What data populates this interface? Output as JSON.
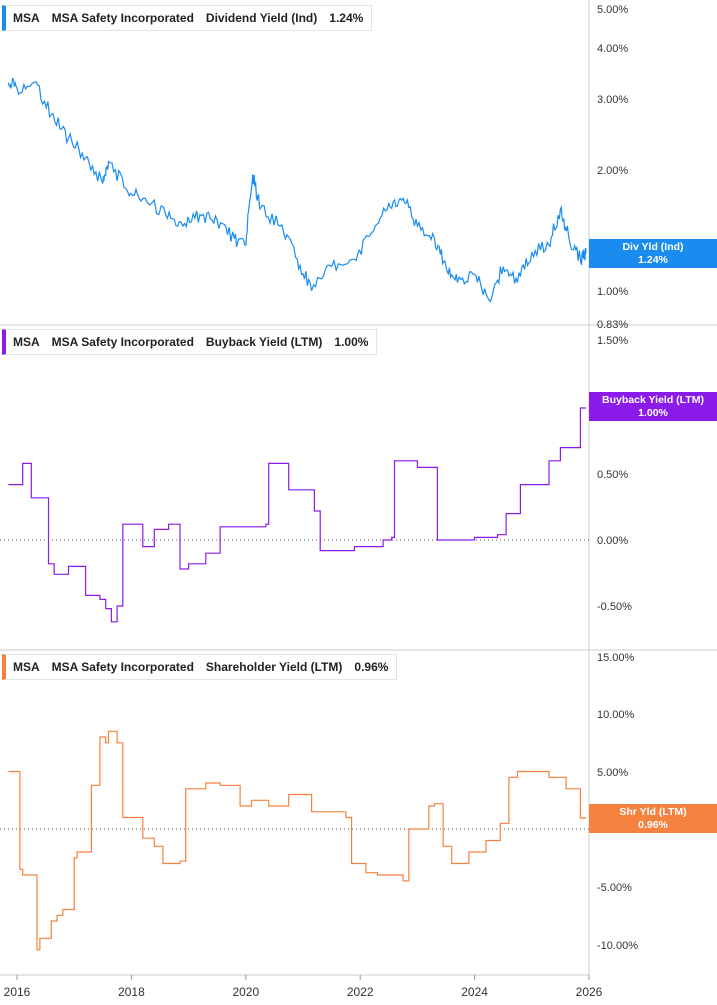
{
  "ticker": "MSA",
  "company": "MSA Safety Incorporated",
  "colors": {
    "dividend": "#1a8cf0",
    "buyback": "#8a1be8",
    "shareholder": "#f5813f"
  },
  "panels": [
    {
      "metric": "Dividend Yield (Ind)",
      "value": "1.24%",
      "badge_name": "Div Yld (Ind)",
      "badge_value": "1.24%"
    },
    {
      "metric": "Buyback Yield (LTM)",
      "value": "1.00%",
      "badge_name": "Buyback Yield (LTM)",
      "badge_value": "1.00%"
    },
    {
      "metric": "Shareholder Yield (LTM)",
      "value": "0.96%",
      "badge_name": "Shr Yld (LTM)",
      "badge_value": "0.96%"
    }
  ],
  "x_axis": {
    "ticks": [
      "2016",
      "2018",
      "2020",
      "2022",
      "2024",
      "2026"
    ]
  },
  "chart_data": [
    {
      "type": "line",
      "series": [
        {
          "name": "Dividend Yield (Ind)",
          "x": [
            2015.85,
            2016.0,
            2016.3,
            2016.6,
            2016.9,
            2017.2,
            2017.5,
            2017.6,
            2017.9,
            2018.2,
            2018.6,
            2018.9,
            2019.2,
            2019.5,
            2019.8,
            2020.0,
            2020.12,
            2020.25,
            2020.6,
            2020.9,
            2021.15,
            2021.5,
            2021.9,
            2022.2,
            2022.5,
            2022.75,
            2023.0,
            2023.3,
            2023.5,
            2023.7,
            2024.0,
            2024.25,
            2024.5,
            2024.75,
            2025.0,
            2025.3,
            2025.5,
            2025.65,
            2025.85,
            2025.95
          ],
          "y": [
            3.3,
            3.2,
            3.3,
            2.75,
            2.4,
            2.15,
            1.85,
            2.1,
            1.8,
            1.7,
            1.55,
            1.45,
            1.55,
            1.5,
            1.35,
            1.3,
            1.95,
            1.6,
            1.45,
            1.2,
            1.0,
            1.15,
            1.2,
            1.4,
            1.65,
            1.7,
            1.45,
            1.35,
            1.15,
            1.05,
            1.1,
            0.95,
            1.15,
            1.05,
            1.25,
            1.3,
            1.6,
            1.35,
            1.2,
            1.24
          ]
        }
      ],
      "y_ticks": [
        "5.00%",
        "4.00%",
        "3.00%",
        "2.00%",
        "1.00%",
        "0.83%"
      ],
      "scale": "log"
    },
    {
      "type": "line",
      "series": [
        {
          "name": "Buyback Yield (LTM)",
          "x": [
            2015.85,
            2016.1,
            2016.25,
            2016.55,
            2016.65,
            2016.9,
            2017.2,
            2017.45,
            2017.55,
            2017.65,
            2017.75,
            2017.85,
            2018.2,
            2018.4,
            2018.65,
            2018.85,
            2019.0,
            2019.3,
            2019.55,
            2019.95,
            2020.35,
            2020.4,
            2020.75,
            2021.2,
            2021.3,
            2021.9,
            2022.4,
            2022.55,
            2022.6,
            2023.0,
            2023.3,
            2023.35,
            2024.0,
            2024.4,
            2024.55,
            2024.8,
            2025.0,
            2025.3,
            2025.5,
            2025.75,
            2025.85,
            2025.95
          ],
          "y": [
            0.42,
            0.58,
            0.32,
            -0.18,
            -0.26,
            -0.2,
            -0.42,
            -0.45,
            -0.52,
            -0.62,
            -0.5,
            0.12,
            -0.05,
            0.08,
            0.12,
            -0.22,
            -0.18,
            -0.1,
            0.1,
            0.1,
            0.12,
            0.58,
            0.38,
            0.22,
            -0.08,
            -0.05,
            0.0,
            0.02,
            0.6,
            0.55,
            0.55,
            0.0,
            0.02,
            0.04,
            0.2,
            0.42,
            0.42,
            0.6,
            0.7,
            0.7,
            1.0,
            1.0
          ]
        }
      ],
      "y_ticks": [
        "1.50%",
        "0.50%",
        "0.00%",
        "-0.50%"
      ],
      "ylim": [
        -0.8,
        1.55
      ]
    },
    {
      "type": "line",
      "series": [
        {
          "name": "Shareholder Yield (LTM)",
          "x": [
            2015.85,
            2016.05,
            2016.1,
            2016.15,
            2016.35,
            2016.4,
            2016.6,
            2016.7,
            2016.8,
            2017.0,
            2017.05,
            2017.3,
            2017.45,
            2017.55,
            2017.6,
            2017.75,
            2017.85,
            2018.2,
            2018.4,
            2018.55,
            2018.85,
            2018.95,
            2019.3,
            2019.55,
            2019.9,
            2020.1,
            2020.4,
            2020.75,
            2021.15,
            2021.75,
            2021.85,
            2022.1,
            2022.3,
            2022.5,
            2022.75,
            2022.85,
            2023.2,
            2023.3,
            2023.45,
            2023.6,
            2023.9,
            2024.2,
            2024.45,
            2024.6,
            2024.75,
            2025.05,
            2025.3,
            2025.6,
            2025.85,
            2025.95
          ],
          "y": [
            5.0,
            -3.5,
            -4.0,
            -4.0,
            -10.5,
            -9.5,
            -8.0,
            -7.5,
            -7.0,
            -2.5,
            -2.0,
            3.8,
            8.0,
            7.5,
            8.5,
            7.5,
            1.0,
            -0.8,
            -1.5,
            -3.0,
            -2.8,
            3.5,
            4.0,
            3.8,
            2.0,
            2.5,
            2.0,
            3.0,
            1.5,
            1.0,
            -3.0,
            -3.8,
            -4.0,
            -4.0,
            -4.5,
            0.0,
            2.0,
            2.2,
            -1.5,
            -3.0,
            -2.0,
            -1.0,
            0.5,
            4.5,
            5.0,
            5.0,
            4.5,
            3.5,
            0.96,
            0.96
          ]
        }
      ],
      "y_ticks": [
        "15.00%",
        "10.00%",
        "5.00%",
        "0.00%",
        "-5.00%",
        "-10.00%"
      ],
      "ylim": [
        -12.5,
        15.5
      ]
    }
  ]
}
